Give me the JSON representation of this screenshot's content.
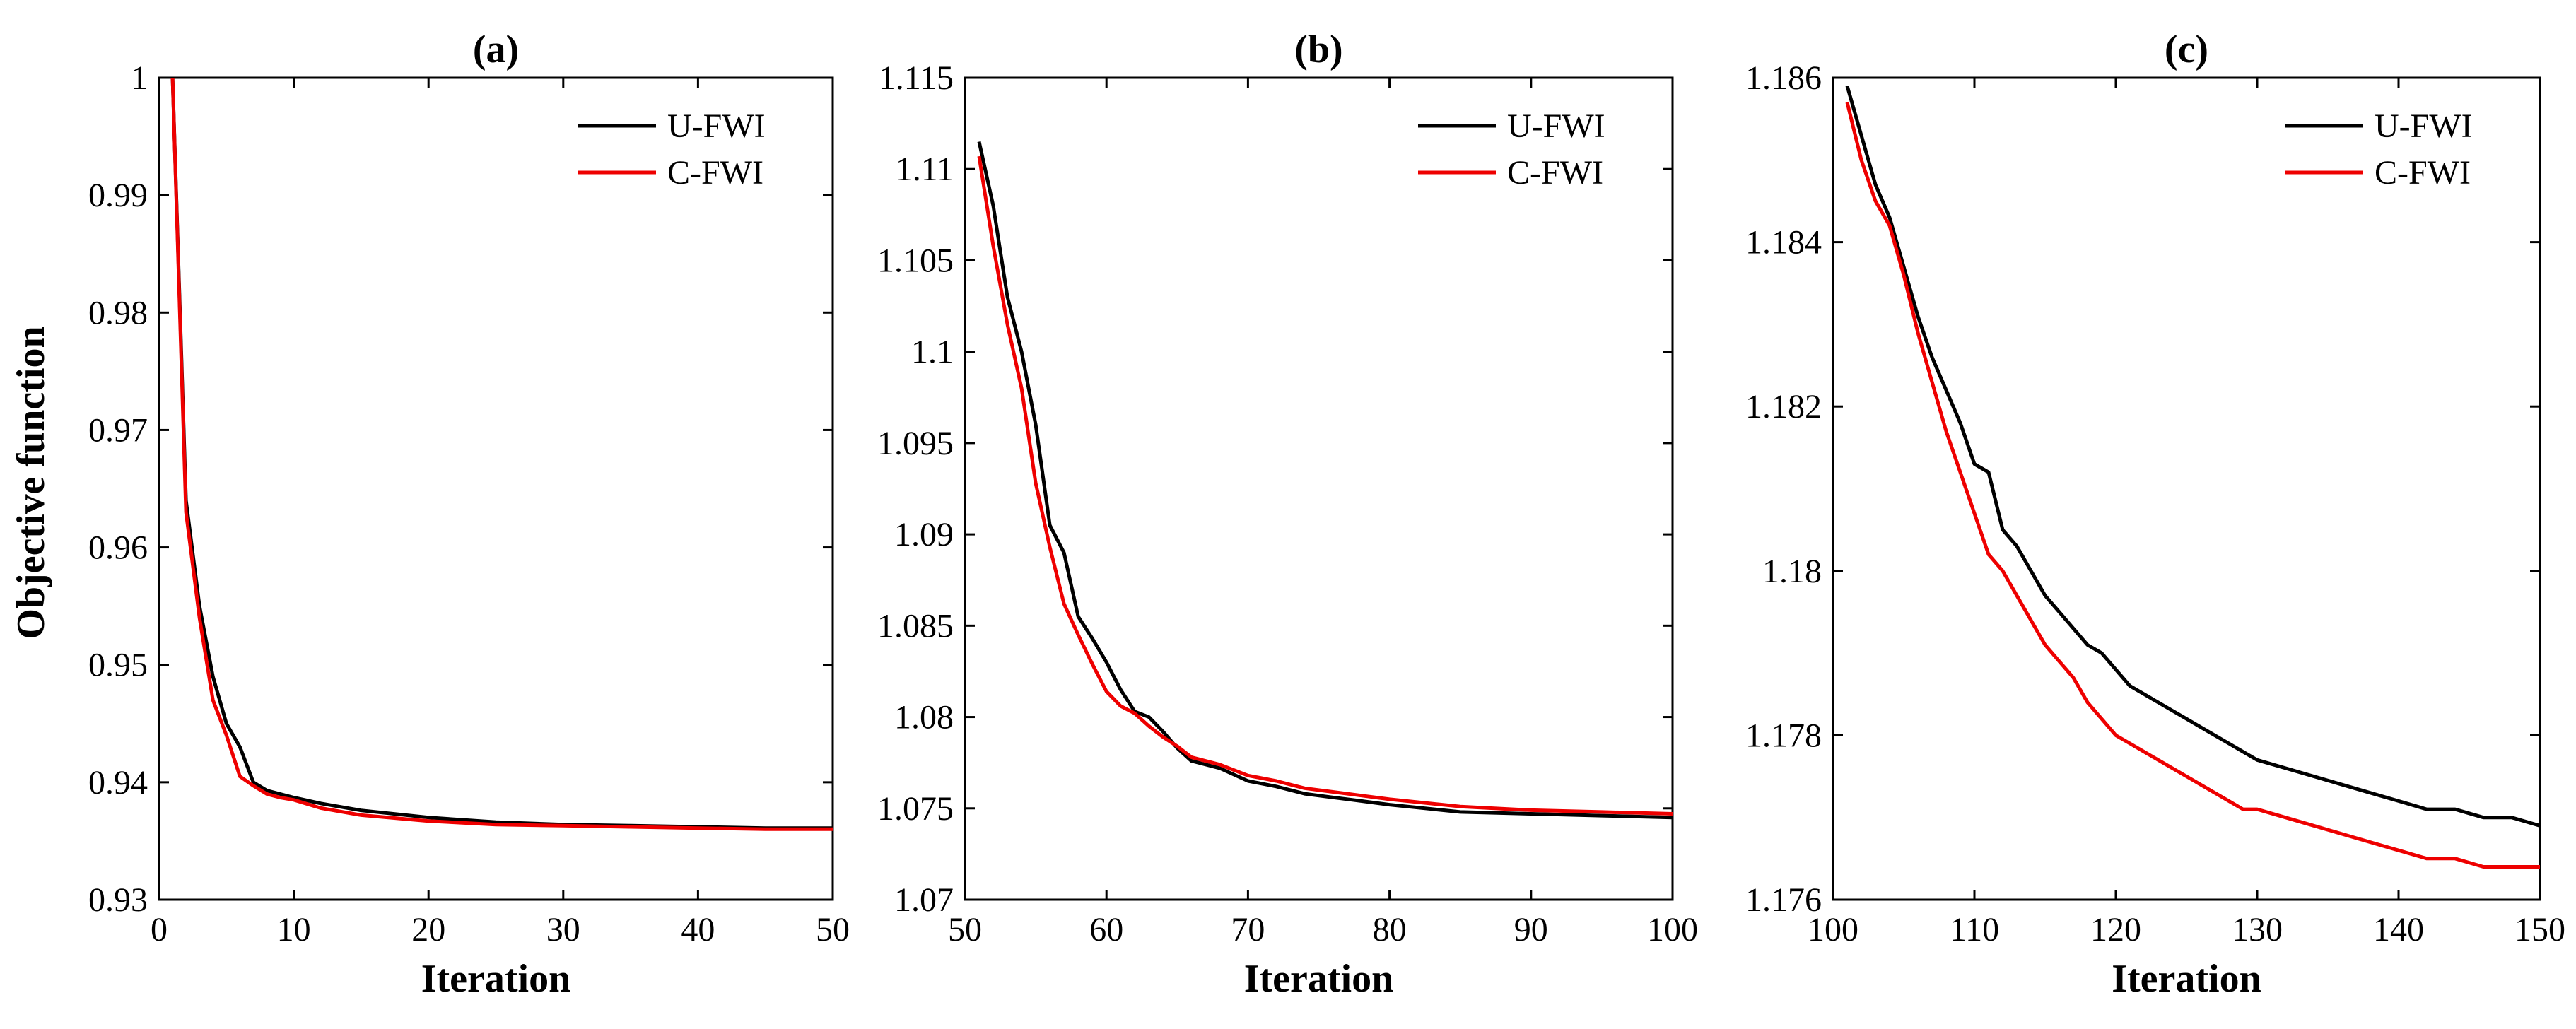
{
  "chart_data": [
    {
      "id": "a",
      "type": "line",
      "title": "(a)",
      "xlabel": "Iteration",
      "ylabel": "Objective function",
      "xlim": [
        0,
        50
      ],
      "ylim": [
        0.93,
        1
      ],
      "xticks": [
        0,
        10,
        20,
        30,
        40,
        50
      ],
      "xtick_labels": [
        "0",
        "10",
        "20",
        "30",
        "40",
        "50"
      ],
      "yticks": [
        0.93,
        0.94,
        0.95,
        0.96,
        0.97,
        0.98,
        0.99,
        1
      ],
      "ytick_labels": [
        "0.93",
        "0.94",
        "0.95",
        "0.96",
        "0.97",
        "0.98",
        "0.99",
        "1"
      ],
      "grid": false,
      "legend_position": "top-right",
      "series": [
        {
          "name": "U-FWI",
          "color": "#000000",
          "x": [
            1,
            2,
            3,
            4,
            5,
            6,
            7,
            8,
            9,
            10,
            12,
            15,
            20,
            25,
            30,
            35,
            40,
            45,
            50
          ],
          "y": [
            1.0,
            0.964,
            0.955,
            0.949,
            0.945,
            0.943,
            0.94,
            0.9393,
            0.939,
            0.9387,
            0.9382,
            0.9376,
            0.937,
            0.9366,
            0.9364,
            0.9363,
            0.9362,
            0.9361,
            0.9361
          ]
        },
        {
          "name": "C-FWI",
          "color": "#ee0000",
          "x": [
            1,
            2,
            3,
            4,
            5,
            6,
            7,
            8,
            9,
            10,
            12,
            15,
            20,
            25,
            30,
            35,
            40,
            45,
            50
          ],
          "y": [
            1.0,
            0.963,
            0.954,
            0.947,
            0.944,
            0.9405,
            0.9397,
            0.939,
            0.9387,
            0.9385,
            0.9378,
            0.9372,
            0.9367,
            0.9364,
            0.9363,
            0.9362,
            0.9361,
            0.936,
            0.936
          ]
        }
      ]
    },
    {
      "id": "b",
      "type": "line",
      "title": "(b)",
      "xlabel": "Iteration",
      "ylabel": "",
      "xlim": [
        50,
        100
      ],
      "ylim": [
        1.07,
        1.115
      ],
      "xticks": [
        50,
        60,
        70,
        80,
        90,
        100
      ],
      "xtick_labels": [
        "50",
        "60",
        "70",
        "80",
        "90",
        "100"
      ],
      "yticks": [
        1.07,
        1.075,
        1.08,
        1.085,
        1.09,
        1.095,
        1.1,
        1.105,
        1.11,
        1.115
      ],
      "ytick_labels": [
        "1.07",
        "1.075",
        "1.08",
        "1.085",
        "1.09",
        "1.095",
        "1.1",
        "1.105",
        "1.11",
        "1.115"
      ],
      "grid": false,
      "legend_position": "top-right",
      "series": [
        {
          "name": "U-FWI",
          "color": "#000000",
          "x": [
            51,
            52,
            53,
            54,
            55,
            56,
            57,
            58,
            59,
            60,
            61,
            62,
            63,
            64,
            65,
            66,
            68,
            70,
            72,
            74,
            76,
            78,
            80,
            85,
            90,
            95,
            100
          ],
          "y": [
            1.1115,
            1.108,
            1.103,
            1.1,
            1.096,
            1.0905,
            1.089,
            1.0855,
            1.0843,
            1.083,
            1.0815,
            1.0803,
            1.08,
            1.0792,
            1.0783,
            1.0776,
            1.0772,
            1.0765,
            1.0762,
            1.0758,
            1.0756,
            1.0754,
            1.0752,
            1.0748,
            1.0747,
            1.0746,
            1.0745
          ]
        },
        {
          "name": "C-FWI",
          "color": "#ee0000",
          "x": [
            51,
            52,
            53,
            54,
            55,
            56,
            57,
            58,
            59,
            60,
            61,
            62,
            63,
            64,
            65,
            66,
            68,
            70,
            72,
            74,
            76,
            78,
            80,
            85,
            90,
            95,
            100
          ],
          "y": [
            1.1107,
            1.1058,
            1.1015,
            1.098,
            1.0928,
            1.0893,
            1.0862,
            1.0845,
            1.0829,
            1.0814,
            1.0806,
            1.0802,
            1.0795,
            1.0789,
            1.0784,
            1.0778,
            1.0774,
            1.0768,
            1.0765,
            1.0761,
            1.0759,
            1.0757,
            1.0755,
            1.0751,
            1.0749,
            1.0748,
            1.0747
          ]
        }
      ]
    },
    {
      "id": "c",
      "type": "line",
      "title": "(c)",
      "xlabel": "Iteration",
      "ylabel": "",
      "xlim": [
        100,
        150
      ],
      "ylim": [
        1.176,
        1.186
      ],
      "xticks": [
        100,
        110,
        120,
        130,
        140,
        150
      ],
      "xtick_labels": [
        "100",
        "110",
        "120",
        "130",
        "140",
        "150"
      ],
      "yticks": [
        1.176,
        1.178,
        1.18,
        1.182,
        1.184,
        1.186
      ],
      "ytick_labels": [
        "1.176",
        "1.178",
        "1.18",
        "1.182",
        "1.184",
        "1.186"
      ],
      "grid": false,
      "legend_position": "top-right",
      "series": [
        {
          "name": "U-FWI",
          "color": "#000000",
          "x": [
            101,
            102,
            103,
            104,
            105,
            106,
            107,
            108,
            109,
            110,
            111,
            112,
            113,
            114,
            115,
            116,
            117,
            118,
            119,
            120,
            121,
            122,
            123,
            124,
            125,
            126,
            127,
            128,
            129,
            130,
            132,
            134,
            136,
            138,
            140,
            142,
            144,
            146,
            148,
            150
          ],
          "y": [
            1.1859,
            1.1853,
            1.1847,
            1.1843,
            1.1837,
            1.1831,
            1.1826,
            1.1822,
            1.1818,
            1.1813,
            1.1812,
            1.1805,
            1.1803,
            1.18,
            1.1797,
            1.1795,
            1.1793,
            1.1791,
            1.179,
            1.1788,
            1.1786,
            1.1785,
            1.1784,
            1.1783,
            1.1782,
            1.1781,
            1.178,
            1.1779,
            1.1778,
            1.1777,
            1.1776,
            1.1775,
            1.1774,
            1.1773,
            1.1772,
            1.1771,
            1.1771,
            1.177,
            1.177,
            1.1769
          ]
        },
        {
          "name": "C-FWI",
          "color": "#ee0000",
          "x": [
            101,
            102,
            103,
            104,
            105,
            106,
            107,
            108,
            109,
            110,
            111,
            112,
            113,
            114,
            115,
            116,
            117,
            118,
            119,
            120,
            121,
            122,
            123,
            124,
            125,
            126,
            127,
            128,
            129,
            130,
            132,
            134,
            136,
            138,
            140,
            142,
            144,
            146,
            148,
            150
          ],
          "y": [
            1.1857,
            1.185,
            1.1845,
            1.1842,
            1.1836,
            1.1829,
            1.1823,
            1.1817,
            1.1812,
            1.1807,
            1.1802,
            1.18,
            1.1797,
            1.1794,
            1.1791,
            1.1789,
            1.1787,
            1.1784,
            1.1782,
            1.178,
            1.1779,
            1.1778,
            1.1777,
            1.1776,
            1.1775,
            1.1774,
            1.1773,
            1.1772,
            1.1771,
            1.1771,
            1.177,
            1.1769,
            1.1768,
            1.1767,
            1.1766,
            1.1765,
            1.1765,
            1.1764,
            1.1764,
            1.1764
          ]
        }
      ]
    }
  ]
}
